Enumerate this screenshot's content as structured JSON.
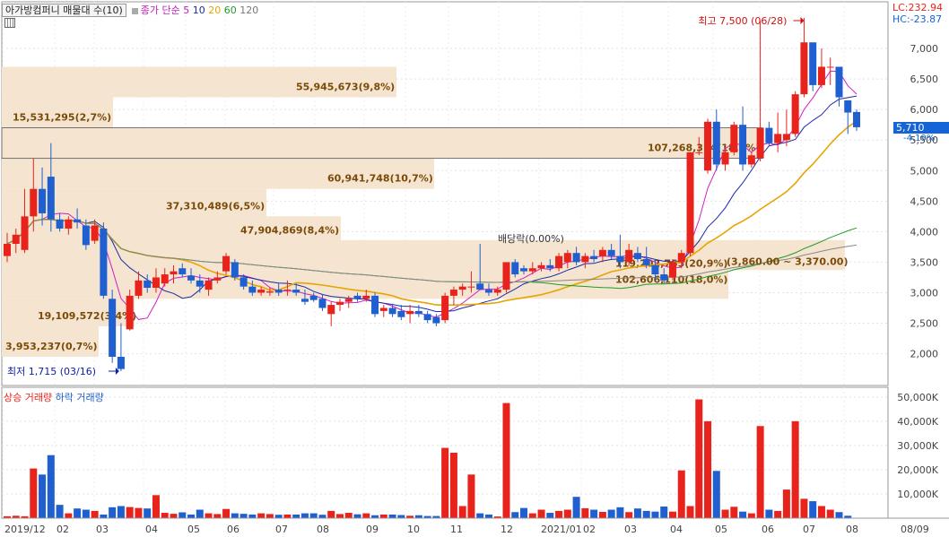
{
  "header": {
    "title": "아가방컴퍼니 매물대 수(10)",
    "ma_label": "종가 단순",
    "ma_periods": [
      "5",
      "10",
      "20",
      "60",
      "120"
    ],
    "ma_colors": [
      "#d020c8",
      "#1a2aa8",
      "#e8a400",
      "#1f9b2a",
      "#888888"
    ],
    "lc_label": "LC:232.94",
    "hc_label": "HC:-23.87"
  },
  "current": {
    "price": "5,710",
    "change": "-4.19%"
  },
  "volume_legend": {
    "up": "상승 거래량",
    "down": "하락 거래량"
  },
  "colors": {
    "up": "#e8231c",
    "down": "#1f5fd0",
    "profile": "#f5e4cf",
    "profile_text": "#7a4a08"
  },
  "annotations": {
    "high": "최고 7,500 (06/28)",
    "low": "최저 1,715 (03/16)",
    "dividend": "배당락(0.00%)",
    "range": "(3,860.00 ~ 3,370.00)"
  },
  "chart_data": [
    {
      "type": "candlestick",
      "title": "아가방컴퍼니",
      "y_ticks": [
        2000,
        2500,
        3000,
        3500,
        4000,
        4500,
        5000,
        5500,
        6000,
        6500,
        7000
      ],
      "y_tick_labels": [
        "2,000",
        "2,500",
        "3,000",
        "3,500",
        "4,000",
        "4,500",
        "5,000",
        "5,500",
        "6,000",
        "6,500",
        "7,000"
      ],
      "ylim": [
        1500,
        7600
      ],
      "x_tick_labels": [
        "2019/12",
        "02",
        "03",
        "04",
        "05",
        "06",
        "07",
        "08",
        "09",
        "10",
        "11",
        "12",
        "2021/01",
        "02",
        "03",
        "04",
        "05",
        "06",
        "07",
        "08",
        "08/09"
      ],
      "candles": [
        [
          3600,
          3980,
          3500,
          3800
        ],
        [
          3800,
          4050,
          3650,
          3950
        ],
        [
          3700,
          4700,
          3650,
          4250
        ],
        [
          4250,
          5200,
          4000,
          4700
        ],
        [
          4700,
          5050,
          4100,
          4300
        ],
        [
          4900,
          5450,
          4000,
          4200
        ],
        [
          4200,
          4300,
          4000,
          4050
        ],
        [
          4050,
          4250,
          3950,
          4200
        ],
        [
          4200,
          4380,
          4050,
          4150
        ],
        [
          4100,
          4200,
          3700,
          3780
        ],
        [
          3850,
          4200,
          3800,
          4100
        ],
        [
          4050,
          4150,
          2900,
          2950
        ],
        [
          2900,
          3050,
          1850,
          1950
        ],
        [
          1950,
          2500,
          1715,
          1750
        ],
        [
          2400,
          3050,
          2380,
          2950
        ],
        [
          2950,
          3350,
          2900,
          3200
        ],
        [
          3200,
          3300,
          3000,
          3080
        ],
        [
          3080,
          3400,
          3000,
          3250
        ],
        [
          3150,
          3400,
          3100,
          3300
        ],
        [
          3300,
          3450,
          3150,
          3350
        ],
        [
          3400,
          3480,
          3250,
          3300
        ],
        [
          3280,
          3400,
          3150,
          3200
        ],
        [
          3200,
          3300,
          3000,
          3100
        ],
        [
          3050,
          3250,
          2950,
          3200
        ],
        [
          3200,
          3350,
          3150,
          3250
        ],
        [
          3350,
          3650,
          3300,
          3600
        ],
        [
          3500,
          3550,
          3200,
          3250
        ],
        [
          3250,
          3300,
          3050,
          3100
        ],
        [
          3100,
          3200,
          2950,
          3000
        ],
        [
          3000,
          3100,
          2950,
          3050
        ],
        [
          3000,
          3080,
          2950,
          3020
        ],
        [
          3050,
          3150,
          2950,
          3000
        ],
        [
          3050,
          3200,
          2950,
          3050
        ],
        [
          3050,
          3150,
          2950,
          3000
        ],
        [
          2900,
          3050,
          2800,
          2850
        ],
        [
          2950,
          3000,
          2850,
          2880
        ],
        [
          2900,
          2980,
          2700,
          2750
        ],
        [
          2650,
          2850,
          2450,
          2800
        ],
        [
          2800,
          2900,
          2700,
          2850
        ],
        [
          2850,
          2950,
          2750,
          2900
        ],
        [
          2950,
          3000,
          2850,
          2900
        ],
        [
          2900,
          3050,
          2850,
          2950
        ],
        [
          2950,
          3000,
          2600,
          2650
        ],
        [
          2700,
          2800,
          2600,
          2750
        ],
        [
          2750,
          2800,
          2600,
          2650
        ],
        [
          2700,
          2800,
          2550,
          2600
        ],
        [
          2650,
          2800,
          2500,
          2700
        ],
        [
          2700,
          2800,
          2600,
          2650
        ],
        [
          2650,
          2700,
          2500,
          2550
        ],
        [
          2600,
          2650,
          2450,
          2500
        ],
        [
          2550,
          3000,
          2500,
          2950
        ],
        [
          2950,
          3100,
          2800,
          3050
        ],
        [
          3050,
          3150,
          2950,
          3100
        ],
        [
          3100,
          3350,
          3000,
          3100
        ],
        [
          3150,
          3800,
          3050,
          3050
        ],
        [
          3050,
          3150,
          2950,
          3000
        ],
        [
          3000,
          3100,
          2950,
          3050
        ],
        [
          3050,
          3500,
          3000,
          3500
        ],
        [
          3500,
          3550,
          3250,
          3300
        ],
        [
          3400,
          3450,
          3300,
          3350
        ],
        [
          3350,
          3500,
          3300,
          3400
        ],
        [
          3400,
          3500,
          3350,
          3450
        ],
        [
          3450,
          3550,
          3350,
          3400
        ],
        [
          3400,
          3650,
          3350,
          3600
        ],
        [
          3500,
          3700,
          3400,
          3650
        ],
        [
          3650,
          3750,
          3450,
          3500
        ],
        [
          3500,
          3650,
          3400,
          3600
        ],
        [
          3600,
          3700,
          3500,
          3550
        ],
        [
          3600,
          3750,
          3500,
          3700
        ],
        [
          3700,
          3800,
          3550,
          3600
        ],
        [
          3600,
          3950,
          3400,
          3500
        ],
        [
          3500,
          3800,
          3450,
          3700
        ],
        [
          3650,
          3750,
          3500,
          3550
        ],
        [
          3550,
          3750,
          3400,
          3450
        ],
        [
          3450,
          3550,
          3200,
          3300
        ],
        [
          3300,
          3400,
          3150,
          3200
        ],
        [
          3250,
          3550,
          3200,
          3500
        ],
        [
          3500,
          3700,
          3400,
          3650
        ],
        [
          3650,
          5300,
          3600,
          5300
        ],
        [
          5300,
          5550,
          5250,
          5300
        ],
        [
          5000,
          5850,
          4950,
          5800
        ],
        [
          5800,
          6000,
          5000,
          5100
        ],
        [
          5100,
          5350,
          5000,
          5300
        ],
        [
          5300,
          5800,
          5250,
          5750
        ],
        [
          5750,
          6050,
          5000,
          5100
        ],
        [
          5100,
          5300,
          5050,
          5250
        ],
        [
          5200,
          7450,
          5150,
          5700
        ],
        [
          5700,
          5800,
          5400,
          5450
        ],
        [
          5450,
          5950,
          5300,
          5600
        ],
        [
          5500,
          6000,
          5400,
          5600
        ],
        [
          5600,
          6300,
          5550,
          6250
        ],
        [
          6250,
          7500,
          6200,
          7100
        ],
        [
          7100,
          7050,
          6300,
          6400
        ],
        [
          6400,
          7000,
          6350,
          6700
        ],
        [
          6700,
          6850,
          6400,
          6700
        ],
        [
          6700,
          6700,
          6050,
          6200
        ],
        [
          6150,
          6150,
          5600,
          5950
        ],
        [
          5960,
          6000,
          5650,
          5710
        ]
      ],
      "volume_series": {
        "name": "거래량",
        "y_ticks": [
          10000,
          20000,
          30000,
          40000,
          50000
        ],
        "y_tick_labels": [
          "10,000K",
          "20,000K",
          "30,000K",
          "40,000K",
          "50,000K"
        ],
        "ylim": [
          0,
          54000
        ],
        "values": [
          800,
          1000,
          800,
          20500,
          18000,
          26000,
          5500,
          2000,
          4000,
          3500,
          3000,
          1500,
          4500,
          5000,
          4600,
          4200,
          4000,
          9500,
          2200,
          1800,
          2400,
          1500,
          3500,
          2000,
          1700,
          3800,
          2000,
          1800,
          1500,
          2000,
          1700,
          1400,
          1500,
          1500,
          2000,
          2000,
          1400,
          3000,
          1700,
          2200,
          1600,
          2000,
          1200,
          1500,
          1500,
          1300,
          1000,
          1200,
          900,
          900,
          29000,
          27000,
          5000,
          18000,
          2000,
          1500,
          700,
          47500,
          2500,
          4200,
          2000,
          3500,
          2200,
          3000,
          3500,
          8800,
          4100,
          3500,
          2600,
          3500,
          4500,
          2500,
          4000,
          3000,
          2700,
          4800,
          2700,
          19700,
          5000,
          49000,
          40000,
          19500,
          3500,
          4700,
          2700,
          2000,
          38000,
          3500,
          3000,
          11800,
          40000,
          8000,
          7000,
          5000,
          3500,
          2500,
          1000
        ]
      },
      "volume_profile": [
        {
          "label": "55,945,673(9,8%)",
          "from": 6200,
          "to": 6700
        },
        {
          "label": "15,531,295(2,7%)",
          "from": 5700,
          "to": 6200
        },
        {
          "label": "107,268,314(18,8%)",
          "from": 5200,
          "to": 5700
        },
        {
          "label": "60,941,748(10,7%)",
          "from": 4700,
          "to": 5200
        },
        {
          "label": "37,310,489(6,5%)",
          "from": 4250,
          "to": 4700
        },
        {
          "label": "47,904,869(8,4%)",
          "from": 3850,
          "to": 4250
        },
        {
          "label": "119,202,765(20,9%)",
          "from": 3370,
          "to": 3860
        },
        {
          "label": "102,606,110(18,0%)",
          "from": 2900,
          "to": 3370
        },
        {
          "label": "19,109,572(3,4%)",
          "from": 2450,
          "to": 2900
        },
        {
          "label": "3,953,237(0,7%)",
          "from": 1950,
          "to": 2450
        }
      ]
    }
  ]
}
